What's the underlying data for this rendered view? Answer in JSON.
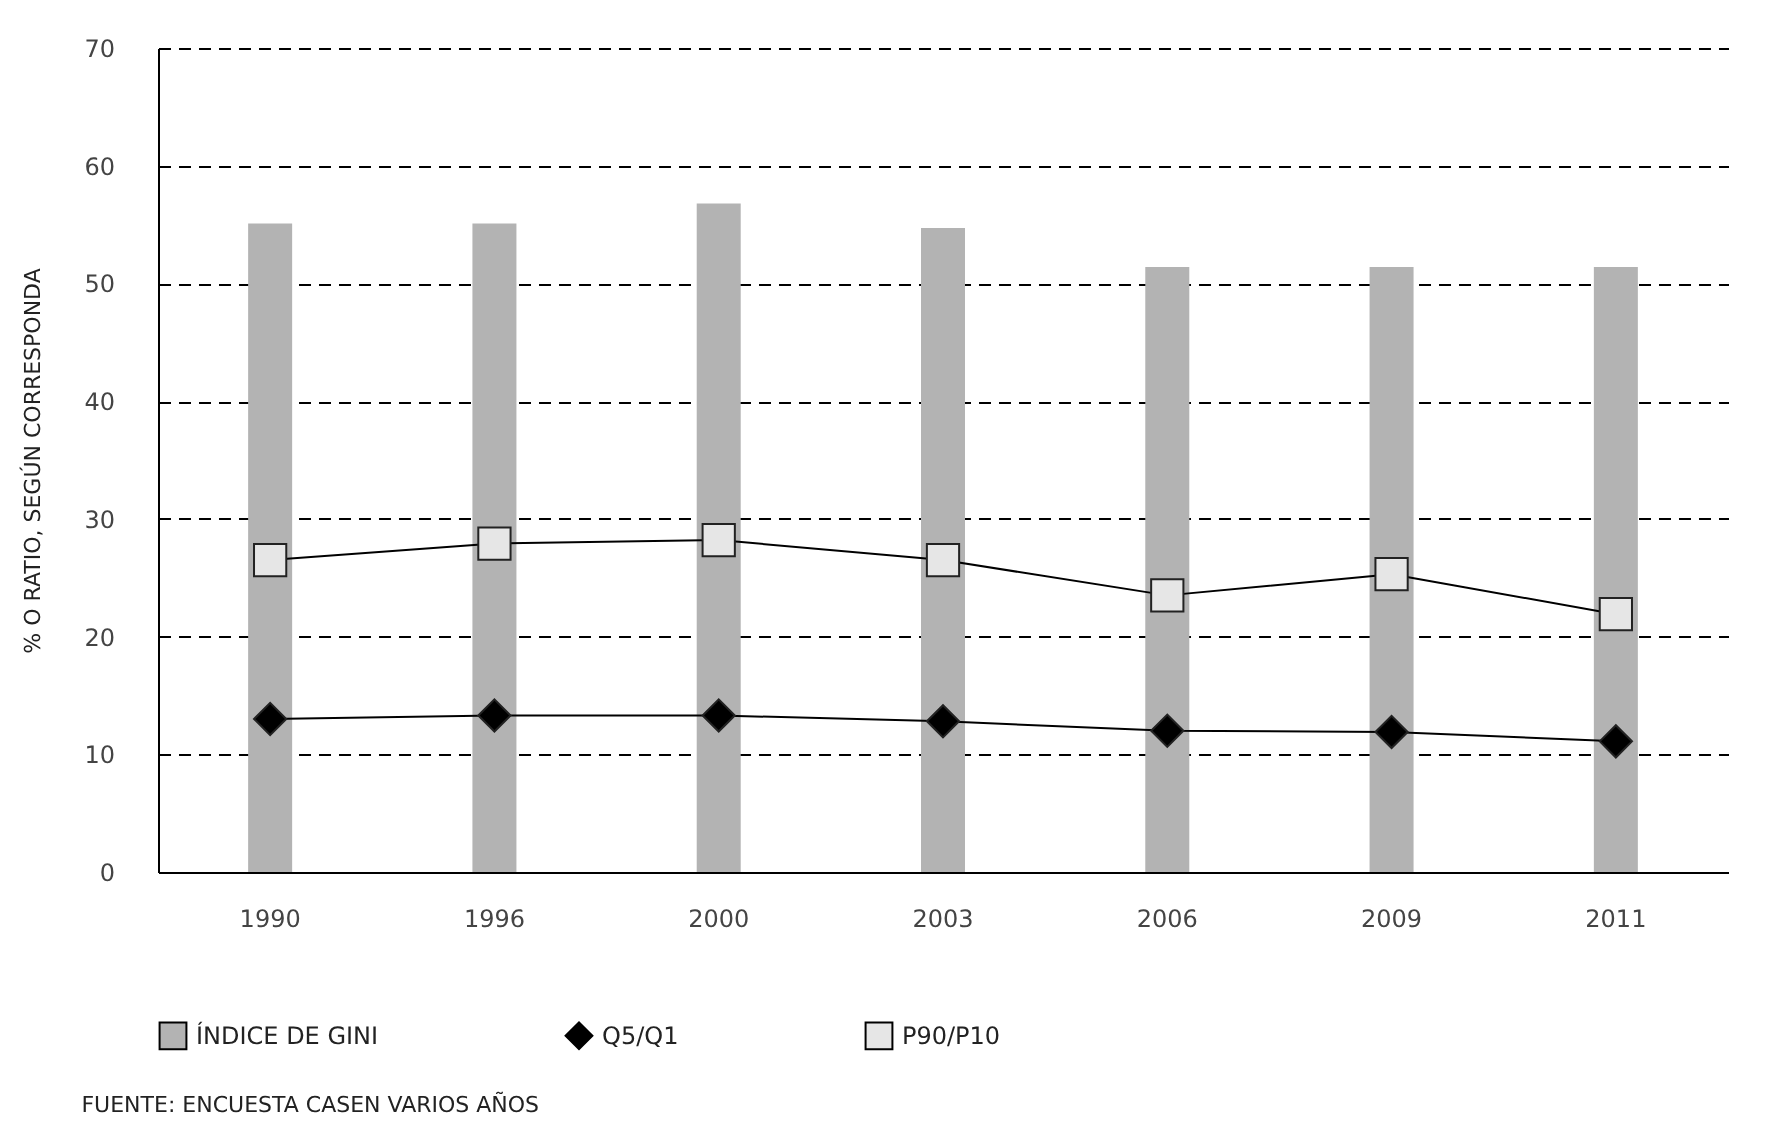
{
  "chart_data": {
    "type": "bar",
    "ylabel": "% O RATIO, SEGÚN CORRESPONDA",
    "categories": [
      "1990",
      "1996",
      "2000",
      "2003",
      "2006",
      "2009",
      "2011"
    ],
    "series": [
      {
        "name": "ÍNDICE DE GINI",
        "color": "#b3b3b3",
        "values": [
          55.1,
          55.1,
          56.8,
          54.7,
          51.4,
          51.4,
          51.4
        ]
      },
      {
        "name": "Q5/Q1",
        "type": "line",
        "marker": "diamond",
        "color": "#000000",
        "values": [
          13.0,
          13.3,
          13.3,
          12.8,
          12.0,
          11.9,
          11.1
        ]
      },
      {
        "name": "P90/P10",
        "type": "line",
        "marker": "square",
        "color": "#e6e6e6",
        "values": [
          26.5,
          27.9,
          28.2,
          26.5,
          23.5,
          25.3,
          21.9
        ]
      }
    ],
    "ylim": [
      0,
      70
    ],
    "yticks": [
      0,
      10,
      20,
      30,
      40,
      50,
      60,
      70
    ],
    "grid": "y",
    "legend": "bottom",
    "annotations": [
      "FUENTE: ENCUESTA CASEN VARIOS AÑOS"
    ]
  }
}
